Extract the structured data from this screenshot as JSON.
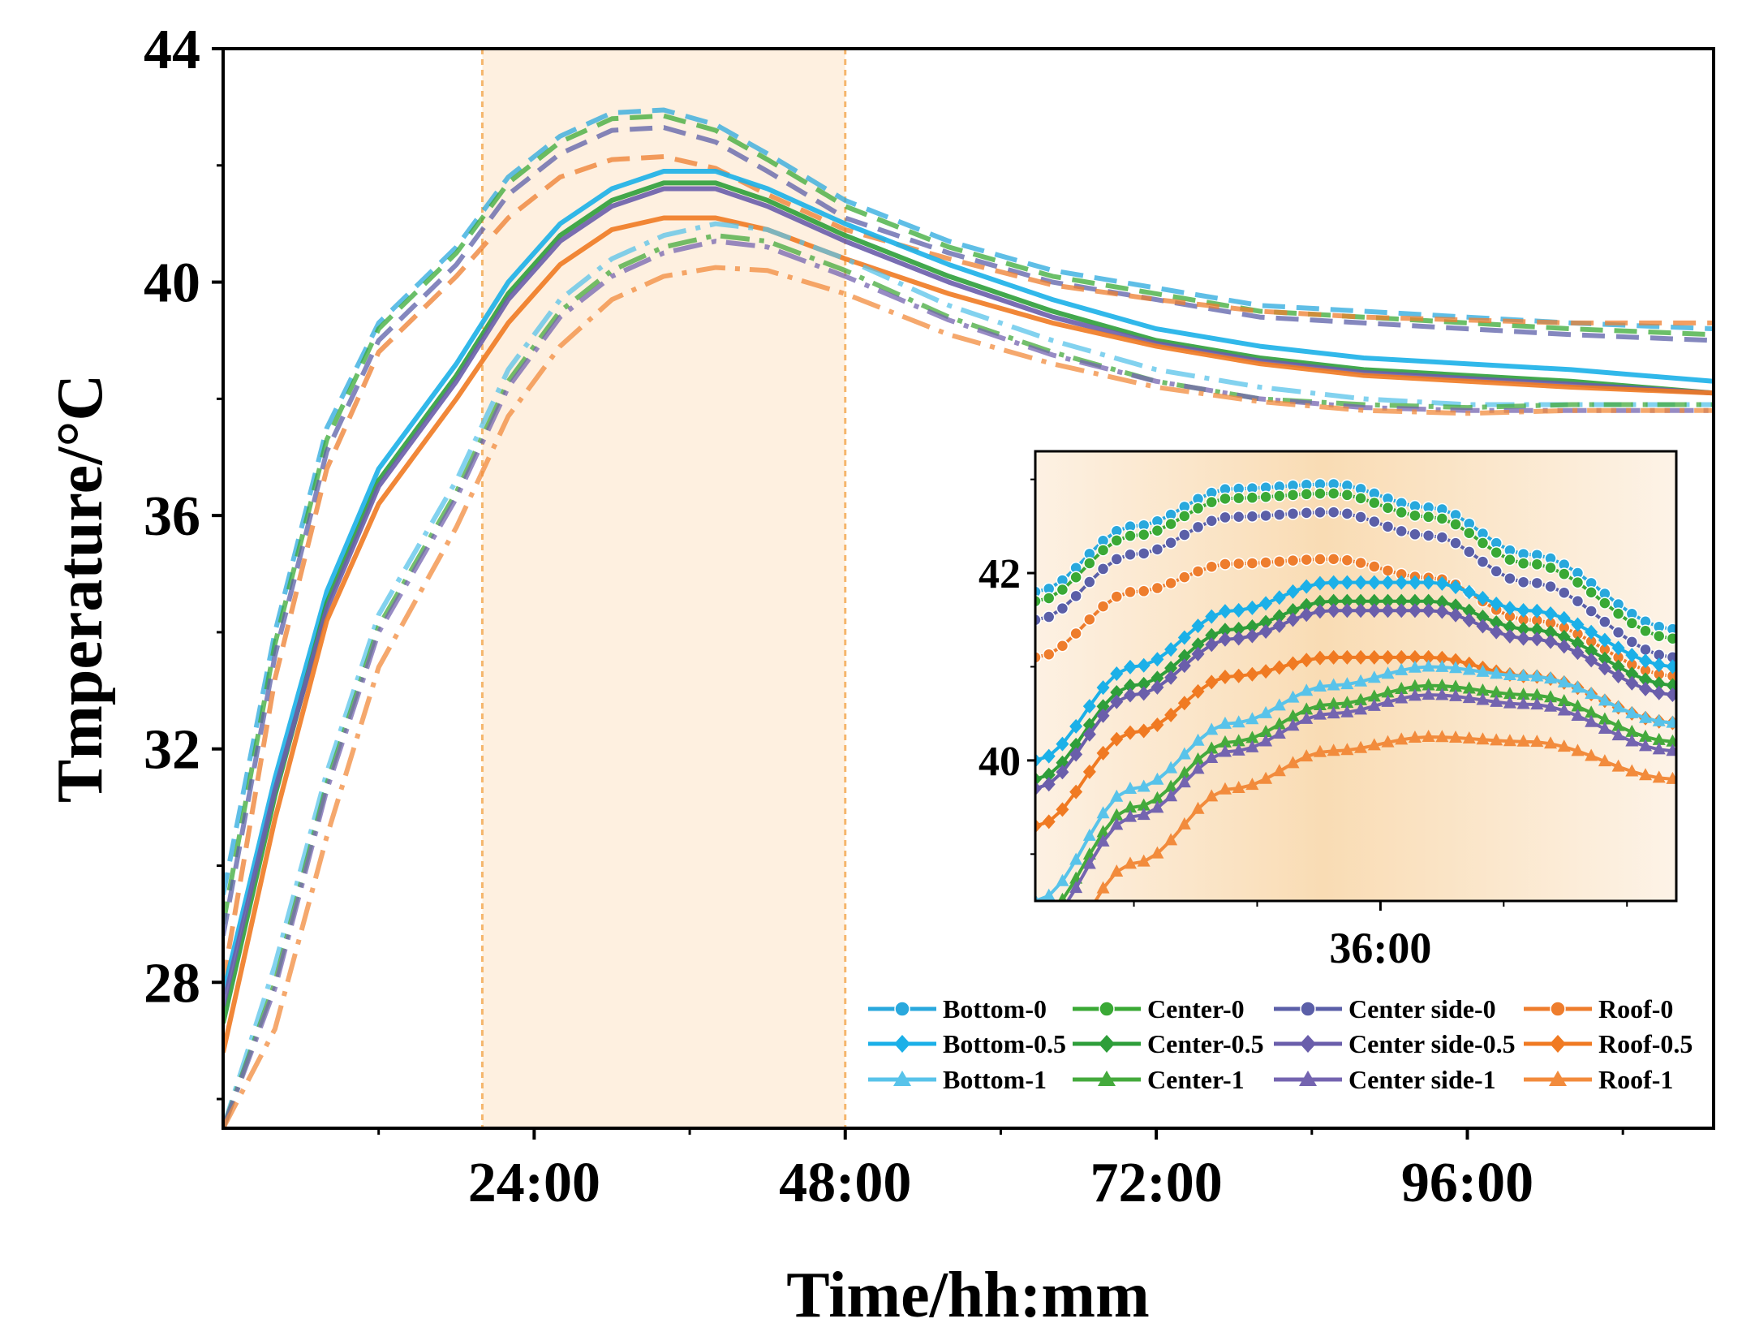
{
  "chart_data": {
    "type": "line",
    "xlabel": "Time/hh:mm",
    "ylabel": "Tmperature/°C",
    "x_unit": "hours",
    "xlim": [
      0,
      115
    ],
    "ylim": [
      25.5,
      44
    ],
    "x_ticks": [
      {
        "value": 24,
        "label": "24:00"
      },
      {
        "value": 48,
        "label": "48:00"
      },
      {
        "value": 72,
        "label": "72:00"
      },
      {
        "value": 96,
        "label": "96:00"
      }
    ],
    "y_ticks": [
      {
        "value": 28,
        "label": "28"
      },
      {
        "value": 32,
        "label": "32"
      },
      {
        "value": 36,
        "label": "36"
      },
      {
        "value": 40,
        "label": "40"
      },
      {
        "value": 44,
        "label": "44"
      }
    ],
    "highlight_band": {
      "x_start": 20,
      "x_end": 48
    },
    "series": [
      {
        "name": "Bottom-0",
        "group": "0",
        "color": "#29a8dd",
        "points": [
          [
            0,
            29.5
          ],
          [
            4,
            34
          ],
          [
            8,
            37.5
          ],
          [
            12,
            39.3
          ],
          [
            18,
            40.6
          ],
          [
            22,
            41.8
          ],
          [
            26,
            42.5
          ],
          [
            30,
            42.9
          ],
          [
            34,
            42.95
          ],
          [
            38,
            42.7
          ],
          [
            42,
            42.2
          ],
          [
            48,
            41.4
          ],
          [
            56,
            40.7
          ],
          [
            64,
            40.2
          ],
          [
            72,
            39.9
          ],
          [
            80,
            39.6
          ],
          [
            88,
            39.5
          ],
          [
            96,
            39.4
          ],
          [
            104,
            39.3
          ],
          [
            115,
            39.2
          ]
        ]
      },
      {
        "name": "Center-0",
        "group": "0",
        "color": "#3aa935",
        "points": [
          [
            0,
            29.0
          ],
          [
            4,
            33.8
          ],
          [
            8,
            37.3
          ],
          [
            12,
            39.2
          ],
          [
            18,
            40.5
          ],
          [
            22,
            41.7
          ],
          [
            26,
            42.4
          ],
          [
            30,
            42.8
          ],
          [
            34,
            42.85
          ],
          [
            38,
            42.6
          ],
          [
            42,
            42.1
          ],
          [
            48,
            41.3
          ],
          [
            56,
            40.6
          ],
          [
            64,
            40.1
          ],
          [
            72,
            39.8
          ],
          [
            80,
            39.5
          ],
          [
            88,
            39.4
          ],
          [
            96,
            39.3
          ],
          [
            104,
            39.2
          ],
          [
            115,
            39.1
          ]
        ]
      },
      {
        "name": "Center side-0",
        "group": "0",
        "color": "#5b5fa8",
        "points": [
          [
            0,
            28.8
          ],
          [
            4,
            33.6
          ],
          [
            8,
            37.1
          ],
          [
            12,
            39.0
          ],
          [
            18,
            40.3
          ],
          [
            22,
            41.5
          ],
          [
            26,
            42.2
          ],
          [
            30,
            42.6
          ],
          [
            34,
            42.65
          ],
          [
            38,
            42.4
          ],
          [
            42,
            41.9
          ],
          [
            48,
            41.1
          ],
          [
            56,
            40.5
          ],
          [
            64,
            40.0
          ],
          [
            72,
            39.7
          ],
          [
            80,
            39.4
          ],
          [
            88,
            39.3
          ],
          [
            96,
            39.2
          ],
          [
            104,
            39.1
          ],
          [
            115,
            39.0
          ]
        ]
      },
      {
        "name": "Roof-0",
        "group": "0",
        "color": "#ee7d2d",
        "points": [
          [
            0,
            28.0
          ],
          [
            4,
            33.2
          ],
          [
            8,
            36.8
          ],
          [
            12,
            38.8
          ],
          [
            18,
            40.1
          ],
          [
            22,
            41.1
          ],
          [
            26,
            41.8
          ],
          [
            30,
            42.1
          ],
          [
            34,
            42.15
          ],
          [
            38,
            41.95
          ],
          [
            42,
            41.5
          ],
          [
            48,
            40.9
          ],
          [
            56,
            40.4
          ],
          [
            64,
            39.95
          ],
          [
            72,
            39.7
          ],
          [
            80,
            39.5
          ],
          [
            88,
            39.4
          ],
          [
            96,
            39.35
          ],
          [
            104,
            39.3
          ],
          [
            115,
            39.3
          ]
        ]
      },
      {
        "name": "Bottom-0.5",
        "group": "0.5",
        "color": "#1bb0e8",
        "points": [
          [
            0,
            27.8
          ],
          [
            4,
            31.5
          ],
          [
            8,
            34.7
          ],
          [
            12,
            36.8
          ],
          [
            18,
            38.6
          ],
          [
            22,
            40.0
          ],
          [
            26,
            41.0
          ],
          [
            30,
            41.6
          ],
          [
            34,
            41.9
          ],
          [
            38,
            41.9
          ],
          [
            42,
            41.6
          ],
          [
            48,
            41.0
          ],
          [
            56,
            40.3
          ],
          [
            64,
            39.7
          ],
          [
            72,
            39.2
          ],
          [
            80,
            38.9
          ],
          [
            88,
            38.7
          ],
          [
            96,
            38.6
          ],
          [
            104,
            38.5
          ],
          [
            115,
            38.3
          ]
        ]
      },
      {
        "name": "Center-0.5",
        "group": "0.5",
        "color": "#2e9e3a",
        "points": [
          [
            0,
            27.3
          ],
          [
            4,
            31.2
          ],
          [
            8,
            34.5
          ],
          [
            12,
            36.6
          ],
          [
            18,
            38.4
          ],
          [
            22,
            39.8
          ],
          [
            26,
            40.8
          ],
          [
            30,
            41.4
          ],
          [
            34,
            41.7
          ],
          [
            38,
            41.7
          ],
          [
            42,
            41.4
          ],
          [
            48,
            40.8
          ],
          [
            56,
            40.1
          ],
          [
            64,
            39.5
          ],
          [
            72,
            39.0
          ],
          [
            80,
            38.7
          ],
          [
            88,
            38.5
          ],
          [
            96,
            38.4
          ],
          [
            104,
            38.3
          ],
          [
            115,
            38.1
          ]
        ]
      },
      {
        "name": "Center side-0.5",
        "group": "0.5",
        "color": "#6a5eab",
        "points": [
          [
            0,
            27.6
          ],
          [
            4,
            31.3
          ],
          [
            8,
            34.4
          ],
          [
            12,
            36.5
          ],
          [
            18,
            38.3
          ],
          [
            22,
            39.7
          ],
          [
            26,
            40.7
          ],
          [
            30,
            41.3
          ],
          [
            34,
            41.6
          ],
          [
            38,
            41.6
          ],
          [
            42,
            41.3
          ],
          [
            48,
            40.7
          ],
          [
            56,
            40.0
          ],
          [
            64,
            39.4
          ],
          [
            72,
            38.95
          ],
          [
            80,
            38.65
          ],
          [
            88,
            38.45
          ],
          [
            96,
            38.35
          ],
          [
            104,
            38.25
          ],
          [
            115,
            38.1
          ]
        ]
      },
      {
        "name": "Roof-0.5",
        "group": "0.5",
        "color": "#f07a22",
        "points": [
          [
            0,
            26.8
          ],
          [
            4,
            30.8
          ],
          [
            8,
            34.2
          ],
          [
            12,
            36.2
          ],
          [
            18,
            38.0
          ],
          [
            22,
            39.3
          ],
          [
            26,
            40.3
          ],
          [
            30,
            40.9
          ],
          [
            34,
            41.1
          ],
          [
            38,
            41.1
          ],
          [
            42,
            40.9
          ],
          [
            48,
            40.4
          ],
          [
            56,
            39.8
          ],
          [
            64,
            39.3
          ],
          [
            72,
            38.9
          ],
          [
            80,
            38.6
          ],
          [
            88,
            38.4
          ],
          [
            96,
            38.3
          ],
          [
            104,
            38.2
          ],
          [
            115,
            38.1
          ]
        ]
      },
      {
        "name": "Bottom-1",
        "group": "1",
        "color": "#58c3ea",
        "points": [
          [
            0,
            25.5
          ],
          [
            4,
            28.3
          ],
          [
            8,
            31.6
          ],
          [
            12,
            34.3
          ],
          [
            18,
            36.6
          ],
          [
            22,
            38.5
          ],
          [
            26,
            39.7
          ],
          [
            30,
            40.4
          ],
          [
            34,
            40.8
          ],
          [
            38,
            41.0
          ],
          [
            42,
            40.9
          ],
          [
            48,
            40.4
          ],
          [
            56,
            39.6
          ],
          [
            64,
            39.0
          ],
          [
            72,
            38.5
          ],
          [
            80,
            38.2
          ],
          [
            88,
            38.0
          ],
          [
            96,
            37.9
          ],
          [
            104,
            37.9
          ],
          [
            115,
            37.9
          ]
        ]
      },
      {
        "name": "Center-1",
        "group": "1",
        "color": "#44aa3c",
        "points": [
          [
            0,
            25.5
          ],
          [
            4,
            28.0
          ],
          [
            8,
            31.4
          ],
          [
            12,
            34.1
          ],
          [
            18,
            36.4
          ],
          [
            22,
            38.3
          ],
          [
            26,
            39.5
          ],
          [
            30,
            40.2
          ],
          [
            34,
            40.6
          ],
          [
            38,
            40.8
          ],
          [
            42,
            40.7
          ],
          [
            48,
            40.2
          ],
          [
            56,
            39.4
          ],
          [
            64,
            38.8
          ],
          [
            72,
            38.3
          ],
          [
            80,
            38.0
          ],
          [
            88,
            37.9
          ],
          [
            96,
            37.85
          ],
          [
            104,
            37.9
          ],
          [
            115,
            37.9
          ]
        ]
      },
      {
        "name": "Center side-1",
        "group": "1",
        "color": "#7464b0",
        "points": [
          [
            0,
            25.5
          ],
          [
            4,
            27.9
          ],
          [
            8,
            31.3
          ],
          [
            12,
            34.0
          ],
          [
            18,
            36.3
          ],
          [
            22,
            38.2
          ],
          [
            26,
            39.4
          ],
          [
            30,
            40.1
          ],
          [
            34,
            40.5
          ],
          [
            38,
            40.7
          ],
          [
            42,
            40.6
          ],
          [
            48,
            40.1
          ],
          [
            56,
            39.35
          ],
          [
            64,
            38.75
          ],
          [
            72,
            38.3
          ],
          [
            80,
            38.0
          ],
          [
            88,
            37.85
          ],
          [
            96,
            37.8
          ],
          [
            104,
            37.8
          ],
          [
            115,
            37.8
          ]
        ]
      },
      {
        "name": "Roof-1",
        "group": "1",
        "color": "#f28b3c",
        "points": [
          [
            0,
            25.5
          ],
          [
            4,
            27.2
          ],
          [
            8,
            30.5
          ],
          [
            12,
            33.4
          ],
          [
            18,
            35.8
          ],
          [
            22,
            37.7
          ],
          [
            26,
            38.9
          ],
          [
            30,
            39.7
          ],
          [
            34,
            40.1
          ],
          [
            38,
            40.25
          ],
          [
            42,
            40.2
          ],
          [
            48,
            39.8
          ],
          [
            56,
            39.1
          ],
          [
            64,
            38.6
          ],
          [
            72,
            38.2
          ],
          [
            80,
            37.95
          ],
          [
            88,
            37.8
          ],
          [
            96,
            37.75
          ],
          [
            104,
            37.8
          ],
          [
            115,
            37.8
          ]
        ]
      }
    ],
    "inset": {
      "xlabel_tick": "36:00",
      "xlim": [
        22,
        48
      ],
      "ylim": [
        38.5,
        43.3
      ],
      "y_ticks": [
        {
          "value": 40,
          "label": "40"
        },
        {
          "value": 42,
          "label": "42"
        }
      ],
      "x_ticks": [
        {
          "value": 36,
          "label": "36:00"
        }
      ]
    },
    "legend": {
      "placement": "bottom-right",
      "entries": [
        {
          "label": "Bottom-0",
          "color": "#29a8dd",
          "marker": "circle"
        },
        {
          "label": "Center-0",
          "color": "#3aa935",
          "marker": "circle"
        },
        {
          "label": "Center side-0",
          "color": "#5b5fa8",
          "marker": "circle"
        },
        {
          "label": "Roof-0",
          "color": "#ee7d2d",
          "marker": "circle"
        },
        {
          "label": "Bottom-0.5",
          "color": "#1bb0e8",
          "marker": "diamond"
        },
        {
          "label": "Center-0.5",
          "color": "#2e9e3a",
          "marker": "diamond"
        },
        {
          "label": "Center side-0.5",
          "color": "#6a5eab",
          "marker": "diamond"
        },
        {
          "label": "Roof-0.5",
          "color": "#f07a22",
          "marker": "diamond"
        },
        {
          "label": "Bottom-1",
          "color": "#58c3ea",
          "marker": "triangle"
        },
        {
          "label": "Center-1",
          "color": "#44aa3c",
          "marker": "triangle"
        },
        {
          "label": "Center side-1",
          "color": "#7464b0",
          "marker": "triangle"
        },
        {
          "label": "Roof-1",
          "color": "#f28b3c",
          "marker": "triangle"
        }
      ]
    }
  }
}
